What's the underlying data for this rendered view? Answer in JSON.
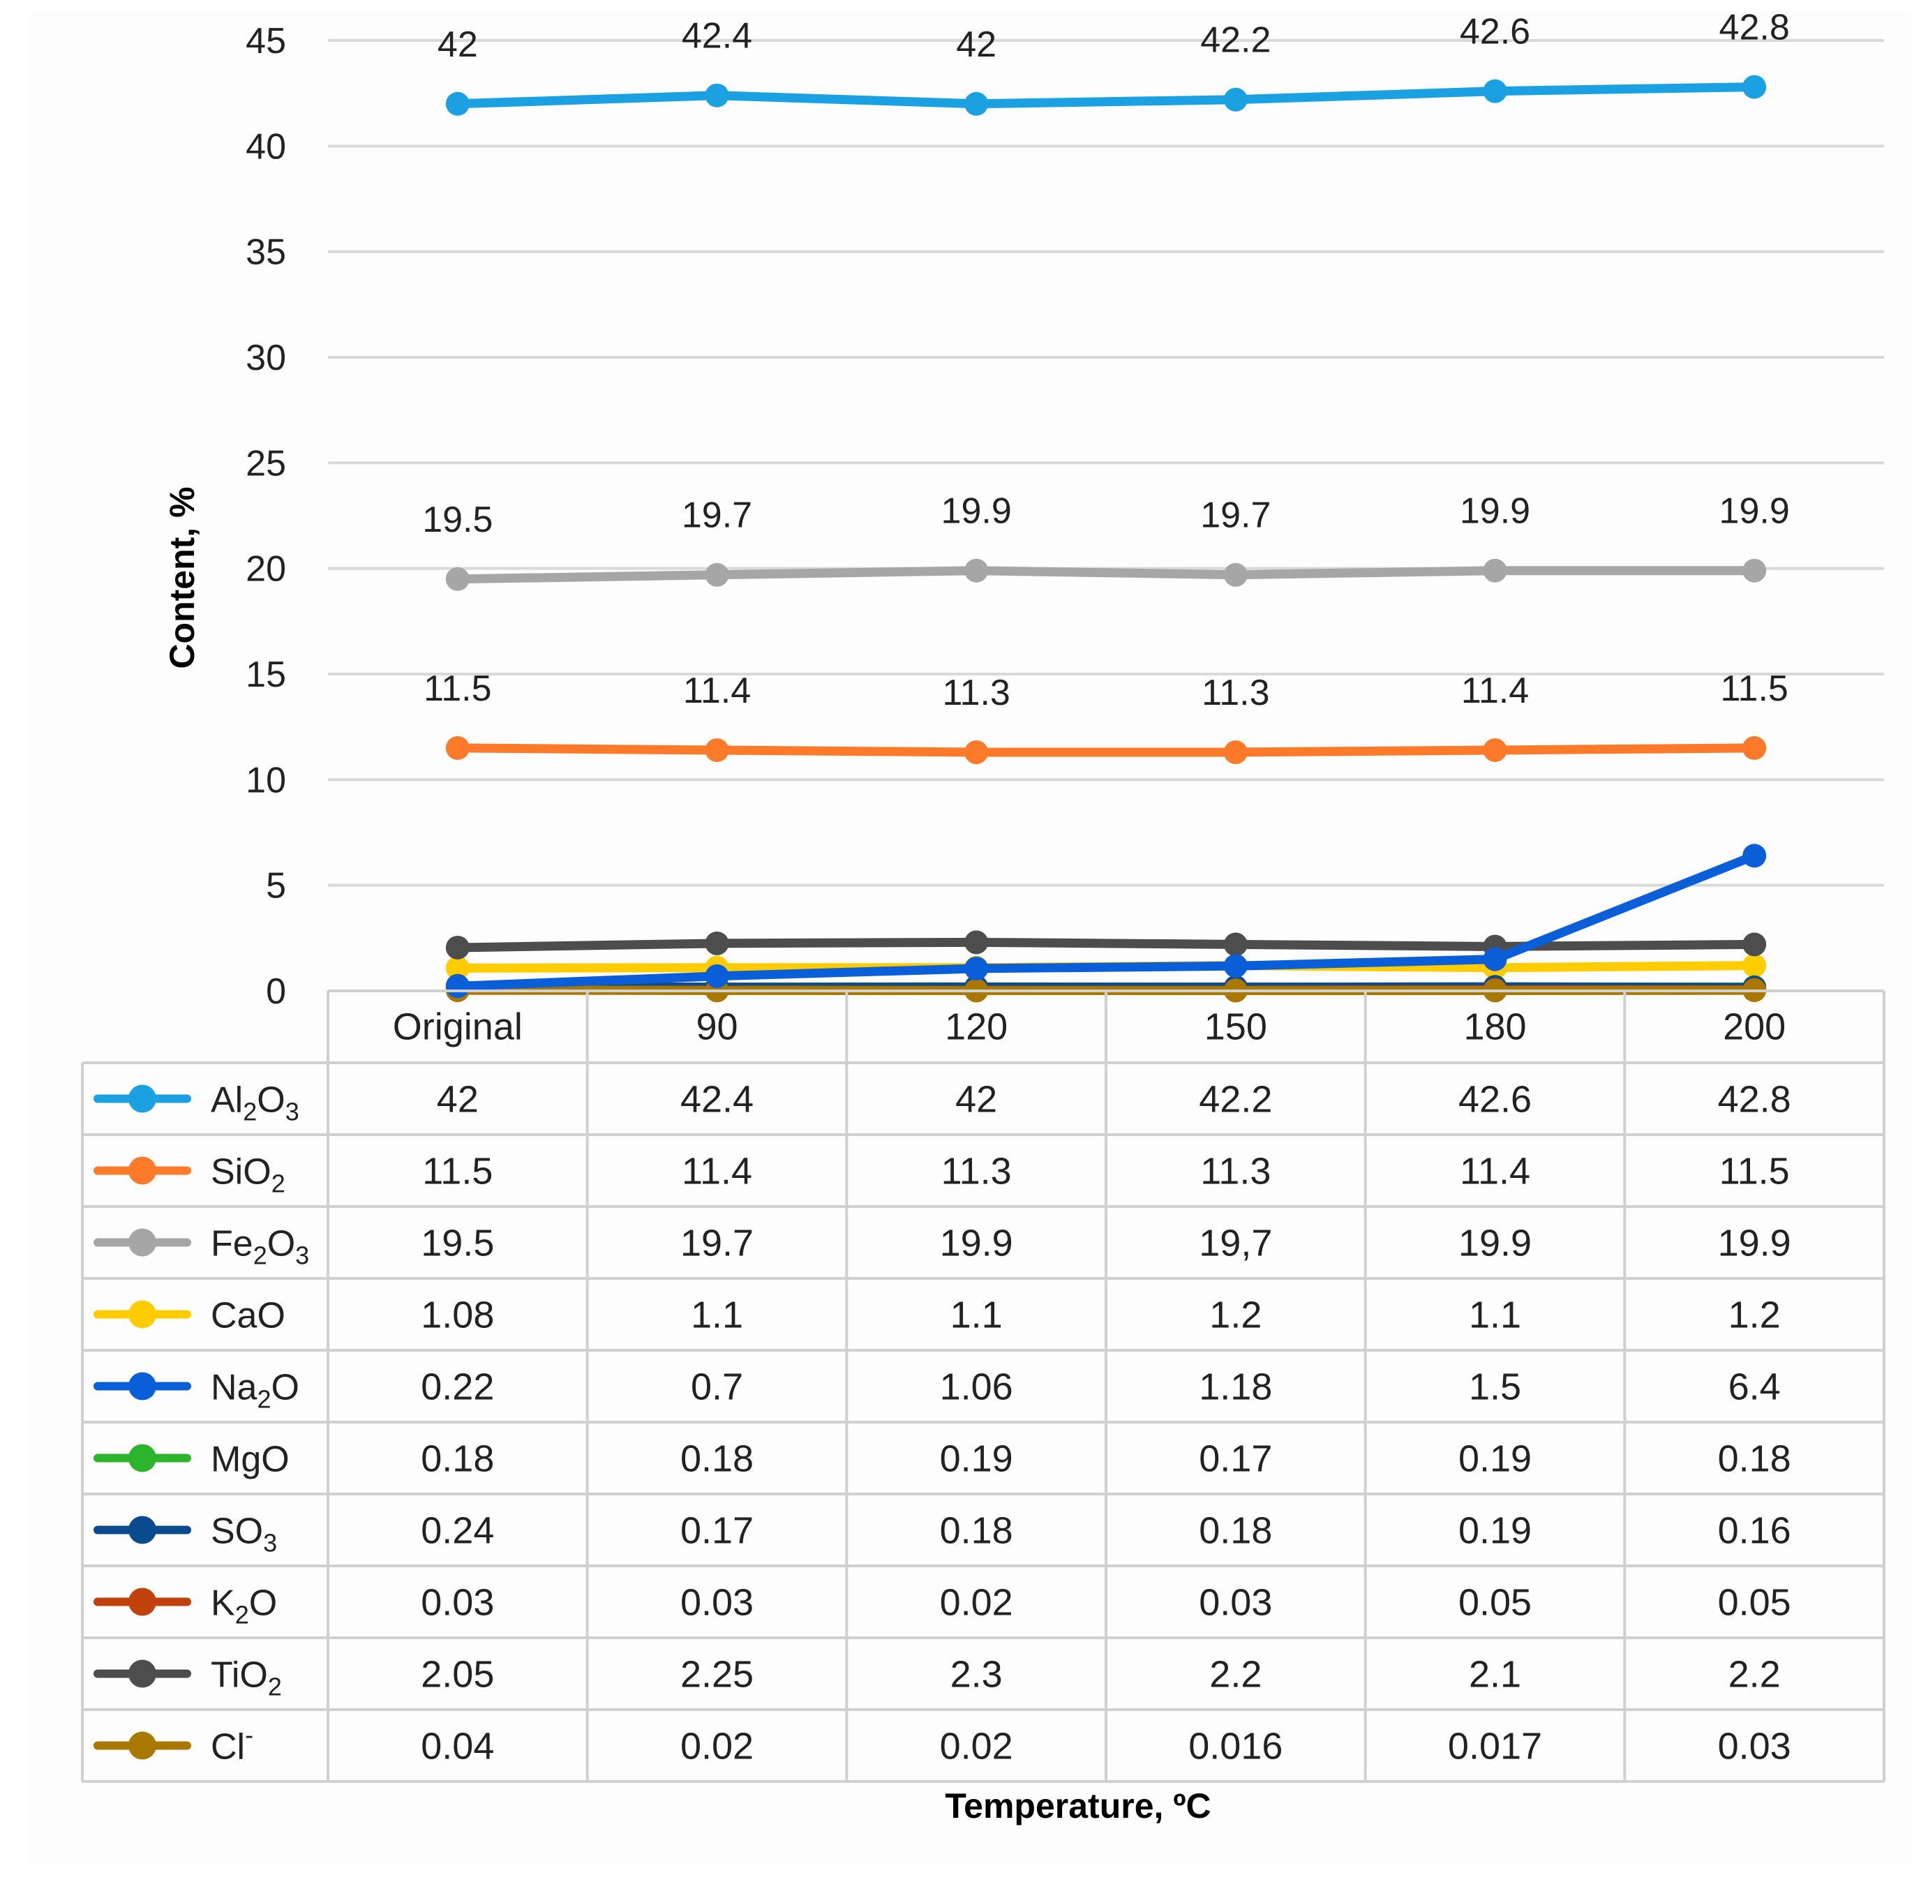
{
  "chart_data": {
    "type": "line",
    "categories": [
      "Original",
      "90",
      "120",
      "150",
      "180",
      "200"
    ],
    "ylabel": "Content, %",
    "xlabel": "Temperature, ºC",
    "ylim": [
      0,
      45
    ],
    "yticks": [
      "45",
      "40",
      "35",
      "30",
      "25",
      "20",
      "15",
      "10",
      "5",
      "0"
    ],
    "ytick_values": [
      45,
      40,
      35,
      30,
      25,
      20,
      15,
      10,
      5,
      0
    ],
    "grid": true,
    "series": [
      {
        "name": "Al2O3",
        "label_parts": [
          [
            "Al",
            ""
          ],
          [
            "2",
            "sub"
          ],
          [
            "O",
            ""
          ],
          [
            "3",
            "sub"
          ]
        ],
        "color": "#1ba1e2",
        "values": [
          42,
          42.4,
          42,
          42.2,
          42.6,
          42.8
        ],
        "table": [
          "42",
          "42.4",
          "42",
          "42.2",
          "42.6",
          "42.8"
        ],
        "data_labels": [
          "42",
          "42.4",
          "42",
          "42.2",
          "42.6",
          "42.8"
        ]
      },
      {
        "name": "SiO2",
        "label_parts": [
          [
            "SiO",
            ""
          ],
          [
            "2",
            "sub"
          ]
        ],
        "color": "#fd7a2b",
        "values": [
          11.5,
          11.4,
          11.3,
          11.3,
          11.4,
          11.5
        ],
        "table": [
          "11.5",
          "11.4",
          "11.3",
          "11.3",
          "11.4",
          "11.5"
        ],
        "data_labels": [
          "11.5",
          "11.4",
          "11.3",
          "11.3",
          "11.4",
          "11.5"
        ]
      },
      {
        "name": "Fe2O3",
        "label_parts": [
          [
            "Fe",
            ""
          ],
          [
            "2",
            "sub"
          ],
          [
            "O",
            ""
          ],
          [
            "3",
            "sub"
          ]
        ],
        "color": "#a6a6a6",
        "values": [
          19.5,
          19.7,
          19.9,
          19.7,
          19.9,
          19.9
        ],
        "table": [
          "19.5",
          "19.7",
          "19.9",
          "19,7",
          "19.9",
          "19.9"
        ],
        "data_labels": [
          "19.5",
          "19.7",
          "19.9",
          "19.7",
          "19.9",
          "19.9"
        ]
      },
      {
        "name": "CaO",
        "label_parts": [
          [
            "CaO",
            ""
          ]
        ],
        "color": "#ffcc00",
        "values": [
          1.08,
          1.1,
          1.1,
          1.2,
          1.1,
          1.2
        ],
        "table": [
          "1.08",
          "1.1",
          "1.1",
          "1.2",
          "1.1",
          "1.2"
        ]
      },
      {
        "name": "Na2O",
        "label_parts": [
          [
            "Na",
            ""
          ],
          [
            "2",
            "sub"
          ],
          [
            "O",
            ""
          ]
        ],
        "color": "#0a5fd8",
        "values": [
          0.22,
          0.7,
          1.06,
          1.18,
          1.5,
          6.4
        ],
        "table": [
          "0.22",
          "0.7",
          "1.06",
          "1.18",
          "1.5",
          "6.4"
        ]
      },
      {
        "name": "MgO",
        "label_parts": [
          [
            "MgO",
            ""
          ]
        ],
        "color": "#2cb52c",
        "values": [
          0.18,
          0.18,
          0.19,
          0.17,
          0.19,
          0.18
        ],
        "table": [
          "0.18",
          "0.18",
          "0.19",
          "0.17",
          "0.19",
          "0.18"
        ]
      },
      {
        "name": "SO3",
        "label_parts": [
          [
            "SO",
            ""
          ],
          [
            "3",
            "sub"
          ]
        ],
        "color": "#0b4a8c",
        "values": [
          0.24,
          0.17,
          0.18,
          0.18,
          0.19,
          0.16
        ],
        "table": [
          "0.24",
          "0.17",
          "0.18",
          "0.18",
          "0.19",
          "0.16"
        ]
      },
      {
        "name": "K2O",
        "label_parts": [
          [
            "K",
            ""
          ],
          [
            "2",
            "sub"
          ],
          [
            "O",
            ""
          ]
        ],
        "color": "#c0410c",
        "values": [
          0.03,
          0.03,
          0.02,
          0.03,
          0.05,
          0.05
        ],
        "table": [
          "0.03",
          "0.03",
          "0.02",
          "0.03",
          "0.05",
          "0.05"
        ]
      },
      {
        "name": "TiO2",
        "label_parts": [
          [
            "TiO",
            ""
          ],
          [
            "2",
            "sub"
          ]
        ],
        "color": "#4d4d4d",
        "values": [
          2.05,
          2.25,
          2.3,
          2.2,
          2.1,
          2.2
        ],
        "table": [
          "2.05",
          "2.25",
          "2.3",
          "2.2",
          "2.1",
          "2.2"
        ]
      },
      {
        "name": "Cl-",
        "label_parts": [
          [
            "Cl",
            ""
          ],
          [
            "-",
            "sup"
          ]
        ],
        "color": "#a87800",
        "values": [
          0.04,
          0.02,
          0.02,
          0.016,
          0.017,
          0.03
        ],
        "table": [
          "0.04",
          "0.02",
          "0.02",
          "0.016",
          "0.017",
          "0.03"
        ]
      }
    ]
  }
}
